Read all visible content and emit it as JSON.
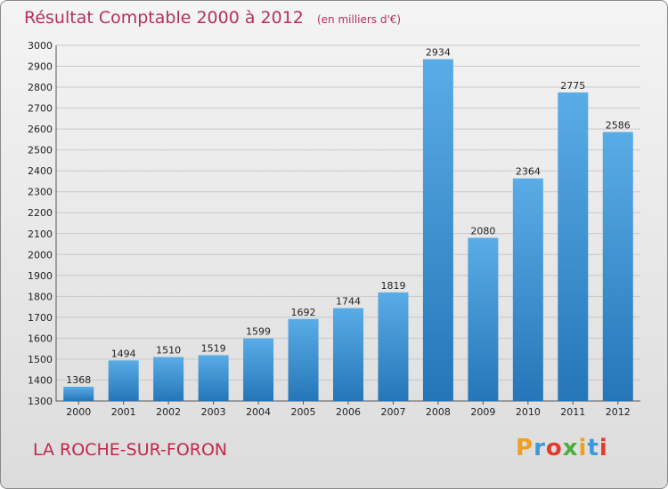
{
  "chart_data": {
    "type": "bar",
    "title": "Résultat Comptable 2000 à 2012",
    "subtitle": "(en milliers d'€)",
    "categories": [
      "2000",
      "2001",
      "2002",
      "2003",
      "2004",
      "2005",
      "2006",
      "2007",
      "2008",
      "2009",
      "2010",
      "2011",
      "2012"
    ],
    "values": [
      1368,
      1494,
      1510,
      1519,
      1599,
      1692,
      1744,
      1819,
      2934,
      2080,
      2364,
      2775,
      2586
    ],
    "ylim": [
      1300,
      3000
    ],
    "ytick_step": 100,
    "xlabel": "",
    "ylabel": "",
    "grid": true,
    "colors": {
      "bar_light": "#5aace6",
      "bar_dark": "#2576b8",
      "grid": "#c8c8c8",
      "title": "#b5305a"
    }
  },
  "footer": {
    "city": "LA ROCHE-SUR-FORON",
    "logo": [
      "P",
      "r",
      "o",
      "x",
      "i",
      "t",
      "i"
    ],
    "logo_colors": [
      "#f0a020",
      "#3a9ad9",
      "#e03c2c",
      "#4cae3c",
      "#f0a020",
      "#3a9ad9",
      "#e03c2c"
    ]
  }
}
